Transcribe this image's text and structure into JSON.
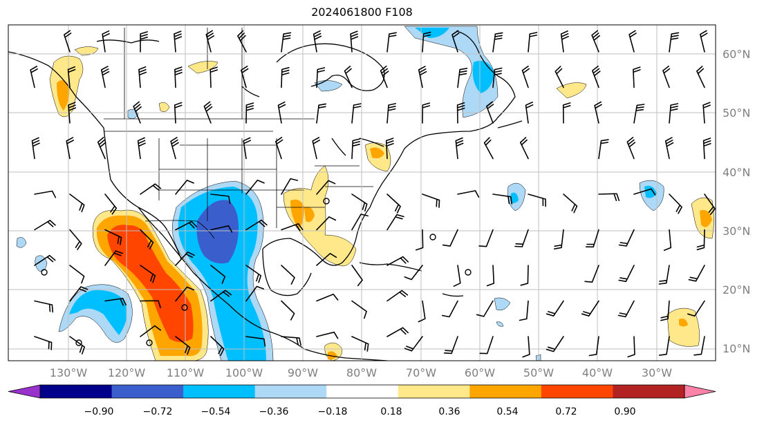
{
  "title": "2024061800 F108",
  "map": {
    "lon_range": [
      -138,
      -18
    ],
    "lat_range": [
      8,
      65
    ],
    "lat_labels": [
      "10°N",
      "20°N",
      "30°N",
      "40°N",
      "50°N",
      "60°N"
    ],
    "lat_values": [
      10,
      20,
      30,
      40,
      50,
      60
    ],
    "lon_labels": [
      "130°W",
      "120°W",
      "110°W",
      "100°W",
      "90°W",
      "80°W",
      "70°W",
      "60°W",
      "50°W",
      "40°W",
      "30°W"
    ],
    "lon_values": [
      -130,
      -120,
      -110,
      -100,
      -90,
      -80,
      -70,
      -60,
      -50,
      -40,
      -30
    ],
    "grid": true,
    "wind_barbs": true
  },
  "colorbar": {
    "orientation": "horizontal",
    "extend": "both",
    "tick_labels": [
      "−0.90",
      "−0.72",
      "−0.54",
      "−0.36",
      "−0.18",
      "0.18",
      "0.36",
      "0.54",
      "0.72",
      "0.90"
    ],
    "colors": [
      "#9932cc",
      "#00008b",
      "#3a5fcd",
      "#00bfff",
      "#add8f6",
      "#ffffff",
      "#ffe88a",
      "#ffa500",
      "#ff4500",
      "#b22222",
      "#ff82ab"
    ]
  }
}
